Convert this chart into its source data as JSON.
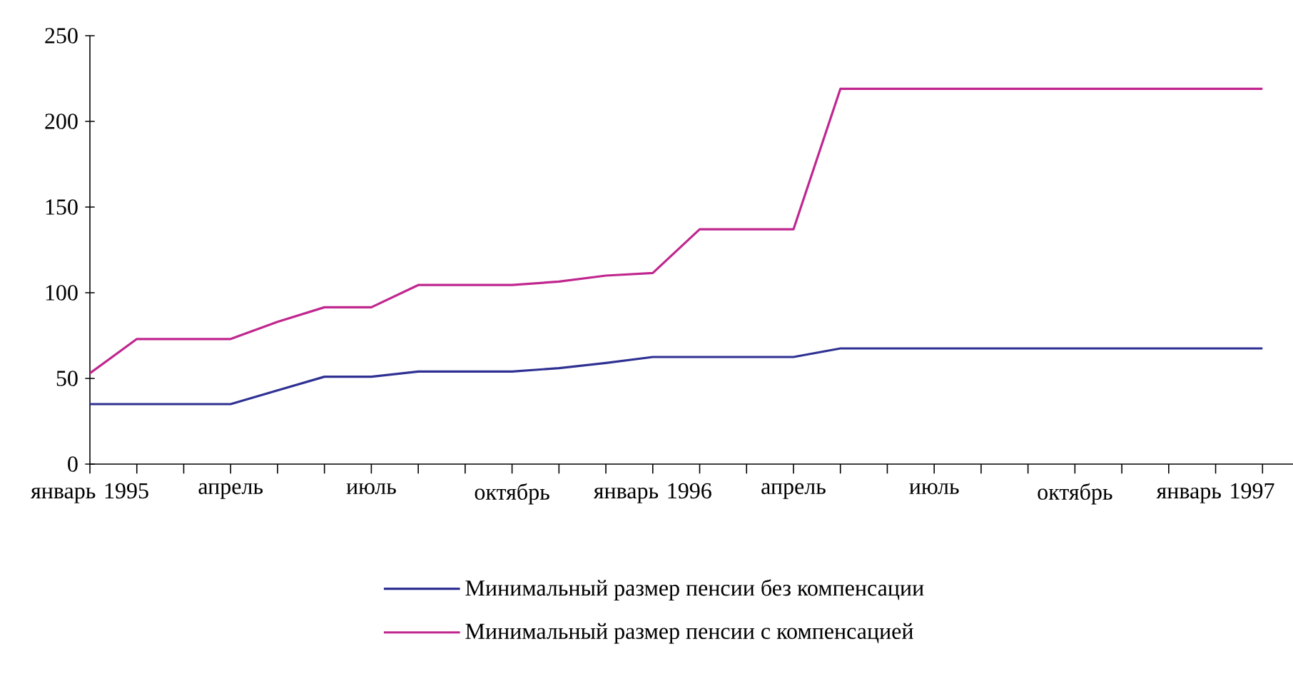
{
  "chart_data": {
    "type": "line",
    "categories": [
      "январь 1995",
      null,
      null,
      "апрель",
      null,
      null,
      "июль",
      null,
      null,
      "октябрь",
      null,
      null,
      "январь 1996",
      null,
      null,
      "апрель",
      null,
      null,
      "июль",
      null,
      null,
      "октябрь",
      null,
      null,
      "январь 1997",
      null
    ],
    "series": [
      {
        "name": "Минимальный размер пенсии без компенсации",
        "color": "#2e3192",
        "values": [
          35,
          35,
          35,
          35,
          43,
          51,
          51,
          54,
          54,
          54,
          56,
          59,
          62.5,
          62.5,
          62.5,
          62.5,
          67.5,
          67.5,
          67.5,
          67.5,
          67.5,
          67.5,
          67.5,
          67.5,
          67.5,
          67.5
        ]
      },
      {
        "name": "Минимальный размер пенсии с компенсацией",
        "color": "#c0268e",
        "values": [
          53,
          73,
          73,
          73,
          83,
          91.5,
          91.5,
          104.5,
          104.5,
          104.5,
          106.5,
          110,
          111.5,
          137,
          137,
          137,
          219,
          219,
          219,
          219,
          219,
          219,
          219,
          219,
          219,
          219
        ]
      }
    ],
    "ylim": [
      0,
      250
    ],
    "yticks": [
      0,
      50,
      100,
      150,
      200,
      250
    ],
    "legend": "bottom"
  }
}
